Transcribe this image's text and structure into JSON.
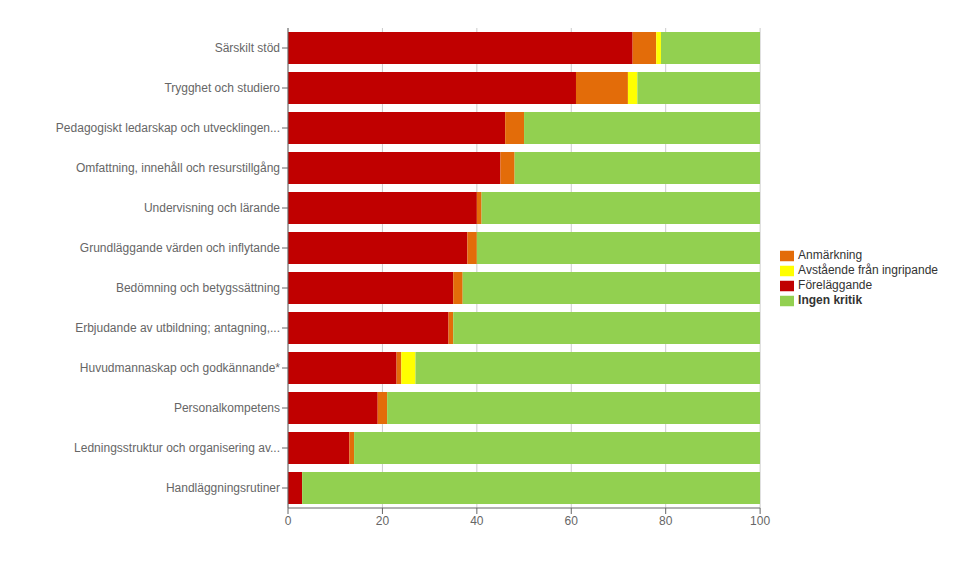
{
  "chart_data": {
    "type": "bar",
    "orientation": "horizontal",
    "stacked": true,
    "grid": true,
    "legend": "right",
    "categories": [
      "Särskilt stöd",
      "Trygghet och studiero",
      "Pedagogiskt ledarskap och utvecklingen...",
      "Omfattning, innehåll och resurstillgång",
      "Undervisning och lärande",
      "Grundläggande värden och inflytande",
      "Bedömning och betygssättning",
      "Erbjudande av utbildning; antagning,...",
      "Huvudmannaskap och godkännande*",
      "Personalkompetens",
      "Ledningsstruktur och organisering av...",
      "Handläggningsrutiner"
    ],
    "series": [
      {
        "name": "Föreläggande",
        "color": "#C00000",
        "values": [
          73,
          61,
          46,
          45,
          40,
          38,
          35,
          34,
          23,
          19,
          13,
          3
        ]
      },
      {
        "name": "Anmärkning",
        "color": "#E36C09",
        "values": [
          5,
          11,
          4,
          3,
          1,
          2,
          2,
          1,
          1,
          2,
          1,
          0
        ]
      },
      {
        "name": "Avstående från ingripande",
        "color": "#FFFF00",
        "values": [
          1,
          2,
          0,
          0,
          0,
          0,
          0,
          0,
          3,
          0,
          0,
          0
        ]
      },
      {
        "name": "Ingen kritik",
        "color": "#92D050",
        "values": [
          21,
          26,
          50,
          52,
          59,
          60,
          63,
          65,
          73,
          79,
          86,
          97
        ]
      }
    ],
    "xlim": [
      0,
      100
    ],
    "xticks": [
      0,
      20,
      40,
      60,
      80,
      100
    ]
  }
}
